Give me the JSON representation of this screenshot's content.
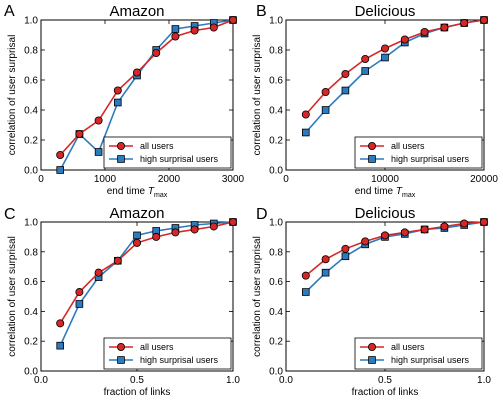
{
  "chart_data": [
    {
      "panel": "A",
      "type": "line",
      "title": "Amazon",
      "xlabel": "end time T",
      "xlabel_sub": "max",
      "ylabel": "correlation of user surprisal",
      "xlim": [
        0,
        3000
      ],
      "ylim": [
        0.0,
        1.0
      ],
      "xticks": [
        0,
        1000,
        2000,
        3000
      ],
      "xtick_labels": [
        "0",
        "1000",
        "2000",
        "3000"
      ],
      "yticks": [
        0.0,
        0.2,
        0.4,
        0.6,
        0.8,
        1.0
      ],
      "ytick_labels": [
        "0.0",
        "0.2",
        "0.4",
        "0.6",
        "0.8",
        "1.0"
      ],
      "legend": "bottom-right",
      "series": [
        {
          "name": "all users",
          "color": "#d62728",
          "marker": "circle",
          "x": [
            300,
            600,
            900,
            1200,
            1500,
            1800,
            2100,
            2400,
            2700,
            3000
          ],
          "y": [
            0.1,
            0.24,
            0.33,
            0.53,
            0.65,
            0.78,
            0.89,
            0.93,
            0.95,
            1.0
          ]
        },
        {
          "name": "high surprisal users",
          "color": "#2d7bbf",
          "marker": "square",
          "x": [
            300,
            600,
            900,
            1200,
            1500,
            1800,
            2100,
            2400,
            2700,
            3000
          ],
          "y": [
            0.0,
            0.24,
            0.12,
            0.45,
            0.63,
            0.8,
            0.94,
            0.96,
            0.98,
            1.0
          ]
        }
      ]
    },
    {
      "panel": "B",
      "type": "line",
      "title": "Delicious",
      "xlabel": "end time T",
      "xlabel_sub": "max",
      "ylabel": "correlation of user surprisal",
      "xlim": [
        0,
        20000
      ],
      "ylim": [
        0.0,
        1.0
      ],
      "xticks": [
        0,
        10000,
        20000
      ],
      "xtick_labels": [
        "0",
        "10000",
        "20000"
      ],
      "yticks": [
        0.0,
        0.2,
        0.4,
        0.6,
        0.8,
        1.0
      ],
      "ytick_labels": [
        "0.0",
        "0.2",
        "0.4",
        "0.6",
        "0.8",
        "1.0"
      ],
      "legend": "bottom-right",
      "series": [
        {
          "name": "all users",
          "color": "#d62728",
          "marker": "circle",
          "x": [
            2000,
            4000,
            6000,
            8000,
            10000,
            12000,
            14000,
            16000,
            18000,
            20000
          ],
          "y": [
            0.37,
            0.52,
            0.64,
            0.74,
            0.81,
            0.87,
            0.92,
            0.95,
            0.98,
            1.0
          ]
        },
        {
          "name": "high surprisal users",
          "color": "#2d7bbf",
          "marker": "square",
          "x": [
            2000,
            4000,
            6000,
            8000,
            10000,
            12000,
            14000,
            16000,
            18000,
            20000
          ],
          "y": [
            0.25,
            0.4,
            0.53,
            0.66,
            0.75,
            0.85,
            0.91,
            0.95,
            0.98,
            1.0
          ]
        }
      ]
    },
    {
      "panel": "C",
      "type": "line",
      "title": "Amazon",
      "xlabel": "fraction of links",
      "xlabel_sub": "",
      "ylabel": "correlation of user surprisal",
      "xlim": [
        0.0,
        1.0
      ],
      "ylim": [
        0.0,
        1.0
      ],
      "xticks": [
        0.0,
        0.5,
        1.0
      ],
      "xtick_labels": [
        "0.0",
        "0.5",
        "1.0"
      ],
      "yticks": [
        0.0,
        0.2,
        0.4,
        0.6,
        0.8,
        1.0
      ],
      "ytick_labels": [
        "0.0",
        "0.2",
        "0.4",
        "0.6",
        "0.8",
        "1.0"
      ],
      "legend": "bottom-right",
      "series": [
        {
          "name": "all users",
          "color": "#d62728",
          "marker": "circle",
          "x": [
            0.1,
            0.2,
            0.3,
            0.4,
            0.5,
            0.6,
            0.7,
            0.8,
            0.9,
            1.0
          ],
          "y": [
            0.32,
            0.53,
            0.66,
            0.74,
            0.86,
            0.9,
            0.93,
            0.95,
            0.97,
            1.0
          ]
        },
        {
          "name": "high surprisal users",
          "color": "#2d7bbf",
          "marker": "square",
          "x": [
            0.1,
            0.2,
            0.3,
            0.4,
            0.5,
            0.6,
            0.7,
            0.8,
            0.9,
            1.0
          ],
          "y": [
            0.17,
            0.45,
            0.63,
            0.74,
            0.91,
            0.94,
            0.96,
            0.98,
            0.99,
            1.0
          ]
        }
      ]
    },
    {
      "panel": "D",
      "type": "line",
      "title": "Delicious",
      "xlabel": "fraction of links",
      "xlabel_sub": "",
      "ylabel": "correlation of user surprisal",
      "xlim": [
        0.0,
        1.0
      ],
      "ylim": [
        0.0,
        1.0
      ],
      "xticks": [
        0.0,
        0.5,
        1.0
      ],
      "xtick_labels": [
        "0.0",
        "0.5",
        "1.0"
      ],
      "yticks": [
        0.0,
        0.2,
        0.4,
        0.6,
        0.8,
        1.0
      ],
      "ytick_labels": [
        "0.0",
        "0.2",
        "0.4",
        "0.6",
        "0.8",
        "1.0"
      ],
      "legend": "bottom-right",
      "series": [
        {
          "name": "all users",
          "color": "#d62728",
          "marker": "circle",
          "x": [
            0.1,
            0.2,
            0.3,
            0.4,
            0.5,
            0.6,
            0.7,
            0.8,
            0.9,
            1.0
          ],
          "y": [
            0.64,
            0.75,
            0.82,
            0.87,
            0.91,
            0.93,
            0.95,
            0.97,
            0.99,
            1.0
          ]
        },
        {
          "name": "high surprisal users",
          "color": "#2d7bbf",
          "marker": "square",
          "x": [
            0.1,
            0.2,
            0.3,
            0.4,
            0.5,
            0.6,
            0.7,
            0.8,
            0.9,
            1.0
          ],
          "y": [
            0.53,
            0.66,
            0.77,
            0.85,
            0.9,
            0.92,
            0.95,
            0.96,
            0.98,
            1.0
          ]
        }
      ]
    }
  ]
}
